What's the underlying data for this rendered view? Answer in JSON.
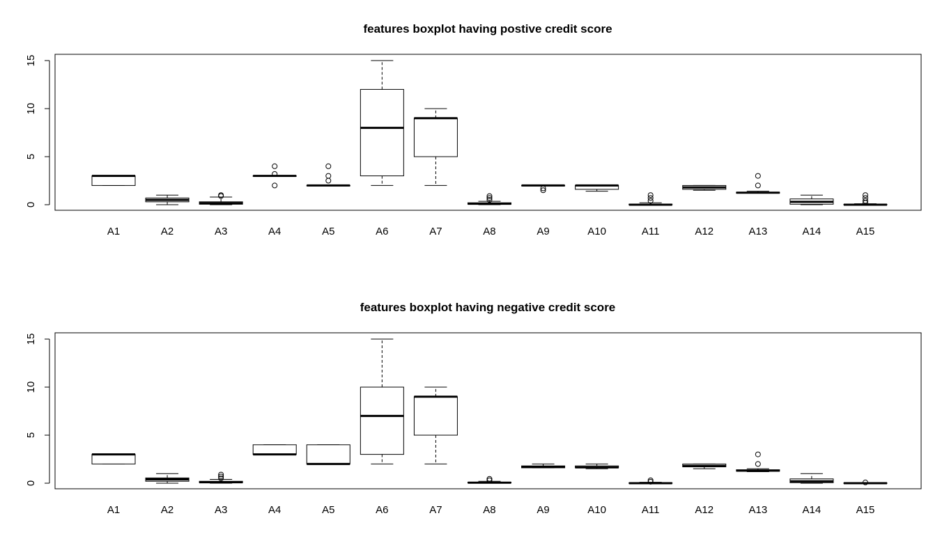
{
  "chart_data": [
    {
      "type": "boxplot",
      "title": "features boxplot having postive credit score",
      "xlabel": "",
      "ylabel": "",
      "ylim": [
        0,
        15
      ],
      "yticks": [
        0,
        5,
        10,
        15
      ],
      "grid": false,
      "categories": [
        "A1",
        "A2",
        "A3",
        "A4",
        "A5",
        "A6",
        "A7",
        "A8",
        "A9",
        "A10",
        "A11",
        "A12",
        "A13",
        "A14",
        "A15"
      ],
      "boxes": [
        {
          "whisker_low": 2,
          "q1": 2,
          "median": 3,
          "q3": 3,
          "whisker_high": 3,
          "outliers": []
        },
        {
          "whisker_low": 0,
          "q1": 0.3,
          "median": 0.5,
          "q3": 0.7,
          "whisker_high": 1,
          "outliers": []
        },
        {
          "whisker_low": 0,
          "q1": 0.05,
          "median": 0.15,
          "q3": 0.3,
          "whisker_high": 0.8,
          "outliers": [
            0.9,
            1
          ]
        },
        {
          "whisker_low": 3,
          "q1": 3,
          "median": 3,
          "q3": 3,
          "whisker_high": 3,
          "outliers": [
            2,
            3.2,
            4
          ]
        },
        {
          "whisker_low": 2,
          "q1": 2,
          "median": 2,
          "q3": 2,
          "whisker_high": 2,
          "outliers": [
            2.5,
            3,
            4
          ]
        },
        {
          "whisker_low": 2,
          "q1": 3,
          "median": 8,
          "q3": 12,
          "whisker_high": 15,
          "outliers": []
        },
        {
          "whisker_low": 2,
          "q1": 5,
          "median": 9,
          "q3": 9,
          "whisker_high": 10,
          "outliers": []
        },
        {
          "whisker_low": 0,
          "q1": 0.05,
          "median": 0.1,
          "q3": 0.2,
          "whisker_high": 0.35,
          "outliers": [
            0.5,
            0.7,
            0.9
          ]
        },
        {
          "whisker_low": 2,
          "q1": 2,
          "median": 2,
          "q3": 2,
          "whisker_high": 2,
          "outliers": [
            1.5,
            1.7
          ]
        },
        {
          "whisker_low": 1.4,
          "q1": 1.6,
          "median": 2,
          "q3": 2,
          "whisker_high": 2,
          "outliers": []
        },
        {
          "whisker_low": 0,
          "q1": 0,
          "median": 0,
          "q3": 0.05,
          "whisker_high": 0.2,
          "outliers": [
            0.4,
            0.7,
            1
          ]
        },
        {
          "whisker_low": 1.5,
          "q1": 1.6,
          "median": 1.8,
          "q3": 2,
          "whisker_high": 2,
          "outliers": []
        },
        {
          "whisker_low": 1.2,
          "q1": 1.2,
          "median": 1.25,
          "q3": 1.3,
          "whisker_high": 1.4,
          "outliers": [
            2,
            3
          ]
        },
        {
          "whisker_low": 0,
          "q1": 0.05,
          "median": 0.3,
          "q3": 0.6,
          "whisker_high": 1,
          "outliers": []
        },
        {
          "whisker_low": 0,
          "q1": 0,
          "median": 0,
          "q3": 0.03,
          "whisker_high": 0.1,
          "outliers": [
            0.2,
            0.4,
            0.7,
            1
          ]
        }
      ]
    },
    {
      "type": "boxplot",
      "title": "features boxplot having negative credit score",
      "xlabel": "",
      "ylabel": "",
      "ylim": [
        0,
        15
      ],
      "yticks": [
        0,
        5,
        10,
        15
      ],
      "grid": false,
      "categories": [
        "A1",
        "A2",
        "A3",
        "A4",
        "A5",
        "A6",
        "A7",
        "A8",
        "A9",
        "A10",
        "A11",
        "A12",
        "A13",
        "A14",
        "A15"
      ],
      "boxes": [
        {
          "whisker_low": 2,
          "q1": 2,
          "median": 3,
          "q3": 3,
          "whisker_high": 3,
          "outliers": []
        },
        {
          "whisker_low": 0,
          "q1": 0.2,
          "median": 0.4,
          "q3": 0.55,
          "whisker_high": 1,
          "outliers": []
        },
        {
          "whisker_low": 0,
          "q1": 0.05,
          "median": 0.1,
          "q3": 0.2,
          "whisker_high": 0.4,
          "outliers": [
            0.5,
            0.7,
            0.9
          ]
        },
        {
          "whisker_low": 3,
          "q1": 3,
          "median": 3,
          "q3": 4,
          "whisker_high": 4,
          "outliers": []
        },
        {
          "whisker_low": 2,
          "q1": 2,
          "median": 2,
          "q3": 4,
          "whisker_high": 4,
          "outliers": []
        },
        {
          "whisker_low": 2,
          "q1": 3,
          "median": 7,
          "q3": 10,
          "whisker_high": 15,
          "outliers": []
        },
        {
          "whisker_low": 2,
          "q1": 5,
          "median": 9,
          "q3": 9,
          "whisker_high": 10,
          "outliers": []
        },
        {
          "whisker_low": 0,
          "q1": 0.03,
          "median": 0.05,
          "q3": 0.1,
          "whisker_high": 0.2,
          "outliers": [
            0.3,
            0.45
          ]
        },
        {
          "whisker_low": 1.6,
          "q1": 1.6,
          "median": 1.7,
          "q3": 1.8,
          "whisker_high": 2,
          "outliers": []
        },
        {
          "whisker_low": 1.5,
          "q1": 1.6,
          "median": 1.65,
          "q3": 1.8,
          "whisker_high": 2,
          "outliers": []
        },
        {
          "whisker_low": 0,
          "q1": 0,
          "median": 0,
          "q3": 0.03,
          "whisker_high": 0.1,
          "outliers": [
            0.15,
            0.3
          ]
        },
        {
          "whisker_low": 1.5,
          "q1": 1.7,
          "median": 1.8,
          "q3": 2,
          "whisker_high": 2,
          "outliers": []
        },
        {
          "whisker_low": 1.2,
          "q1": 1.25,
          "median": 1.3,
          "q3": 1.4,
          "whisker_high": 1.5,
          "outliers": [
            2,
            3
          ]
        },
        {
          "whisker_low": 0,
          "q1": 0.05,
          "median": 0.2,
          "q3": 0.45,
          "whisker_high": 1,
          "outliers": []
        },
        {
          "whisker_low": 0,
          "q1": 0,
          "median": 0,
          "q3": 0.02,
          "whisker_high": 0.05,
          "outliers": [
            0.08
          ]
        }
      ]
    }
  ]
}
